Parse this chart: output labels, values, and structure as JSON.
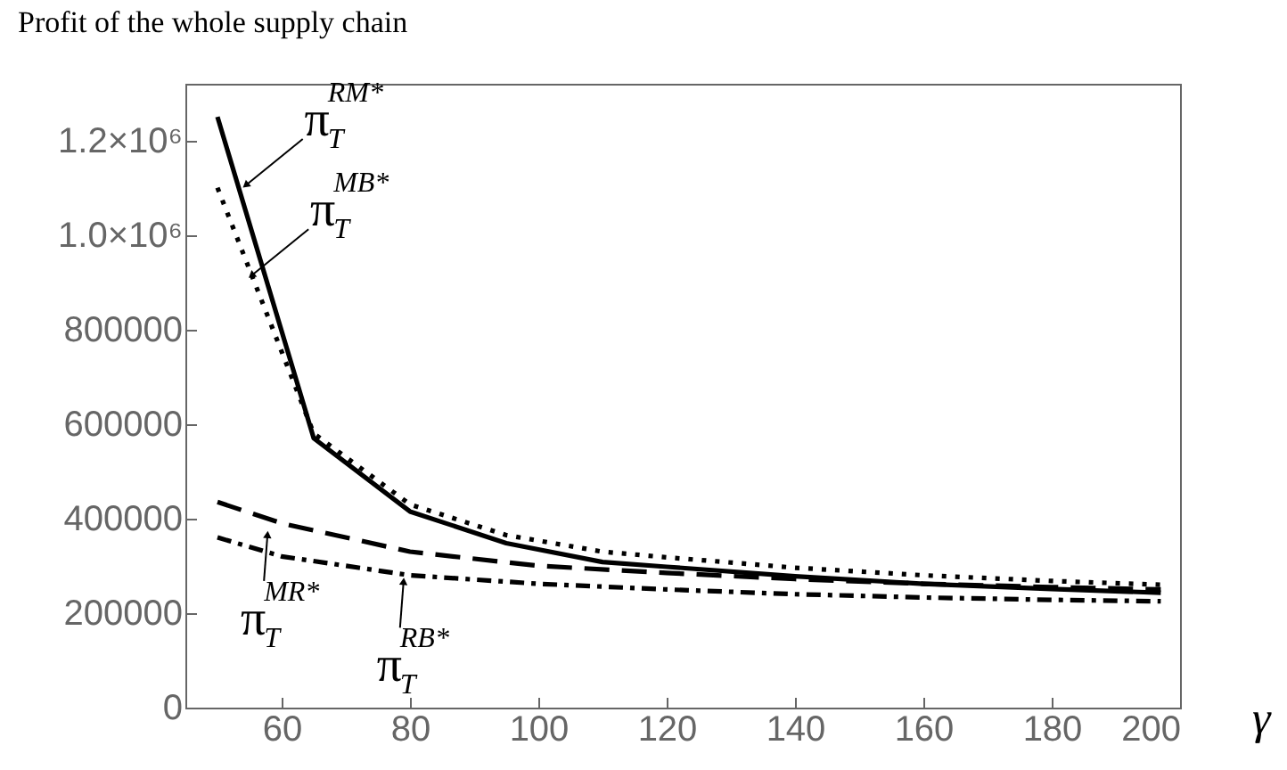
{
  "chart_data": {
    "type": "line",
    "title": "Profit of the whole supply chain",
    "xlabel": "γ",
    "xlim": [
      45,
      200
    ],
    "xticks": [
      60,
      80,
      100,
      120,
      140,
      160,
      180,
      200
    ],
    "ylim": [
      0,
      1320000
    ],
    "yticks": [
      0,
      200000,
      400000,
      600000,
      800000,
      {
        "value": 1000000,
        "label": "1.0×10⁶"
      },
      {
        "value": 1200000,
        "label": "1.2×10⁶"
      }
    ],
    "grid": false,
    "series": [
      {
        "color": "#000000",
        "line_style": "solid",
        "x": [
          50,
          65,
          80,
          95,
          110,
          120,
          140,
          160,
          180,
          197
        ],
        "values": [
          1250000,
          570000,
          415000,
          348000,
          308000,
          298000,
          278000,
          262000,
          251000,
          243000
        ]
      },
      {
        "color": "#000000",
        "line_style": "dotted",
        "x": [
          50,
          65,
          80,
          95,
          110,
          120,
          140,
          160,
          180,
          197
        ],
        "values": [
          1100000,
          580000,
          430000,
          365000,
          330000,
          318000,
          296000,
          280000,
          268000,
          260000
        ]
      },
      {
        "color": "#000000",
        "line_style": "dashed",
        "x": [
          50,
          60,
          80,
          100,
          120,
          140,
          160,
          180,
          197
        ],
        "values": [
          435000,
          390000,
          330000,
          300000,
          285000,
          272000,
          262000,
          255000,
          250000
        ]
      },
      {
        "color": "#000000",
        "line_style": "dashdot",
        "x": [
          50,
          60,
          80,
          100,
          120,
          140,
          160,
          180,
          197
        ],
        "values": [
          360000,
          320000,
          280000,
          262000,
          250000,
          240000,
          233000,
          228000,
          225000
        ]
      }
    ],
    "annotations": [
      {
        "text": "π$^{RM*}$$_{T}$",
        "x": 54.4,
        "y": 1105000
      },
      {
        "text": "π$^{MB*}$$_{T}$",
        "x": 55.3,
        "y": 914000
      },
      {
        "text": "π$^{MR*}$$_{T}$",
        "x": 57.8,
        "y": 366000
      },
      {
        "text": "π$^{RB*}$$_{T}$",
        "x": 79,
        "y": 267000
      }
    ]
  }
}
